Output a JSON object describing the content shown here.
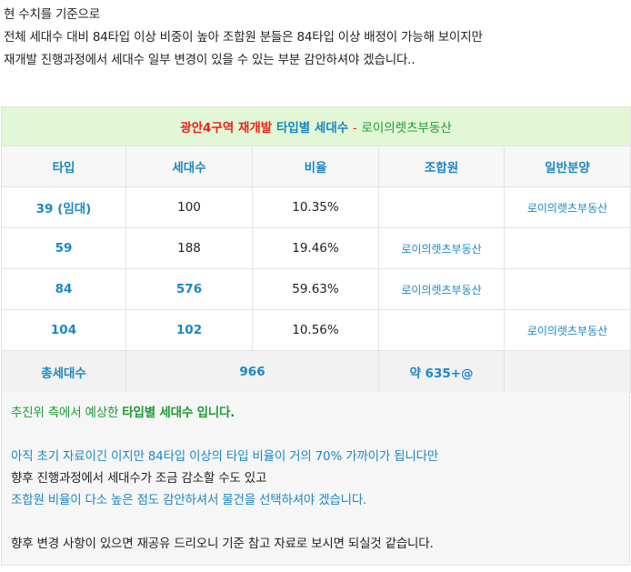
{
  "intro": {
    "line1": "현 수치를 기준으로",
    "line2": "전체 세대수 대비 84타입 이상 비중이 높아 조합원 분들은 84타입 이상 배정이 가능해 보이지만",
    "line3": "재개발 진행과정에서 세대수 일부 변경이 있을 수 있는 부분 감안하셔야 겠습니다.."
  },
  "table": {
    "title": {
      "part_area": "광안4구역 재개발",
      "part_type": "타입별 세대수",
      "separator": "-",
      "part_agent": "로이의렛츠부동산"
    },
    "headers": [
      "타입",
      "세대수",
      "비율",
      "조합원",
      "일반분양"
    ],
    "rows": [
      {
        "type": "39 (임대)",
        "units": "100",
        "ratio": "10.35%",
        "member": "",
        "general": "로이의렛츠부동산"
      },
      {
        "type": "59",
        "units": "188",
        "ratio": "19.46%",
        "member": "로이의렛츠부동산",
        "general": ""
      },
      {
        "type": "84",
        "units": "576",
        "ratio": "59.63%",
        "member": "로이의렛츠부동산",
        "general": ""
      },
      {
        "type": "104",
        "units": "102",
        "ratio": "10.56%",
        "member": "",
        "general": "로이의렛츠부동산"
      }
    ],
    "total": {
      "label": "총세대수",
      "units": "966",
      "member": "약 635+@",
      "general": ""
    }
  },
  "notes": {
    "line1_prefix": "추진위 측에서 예상한",
    "line1_bold": "타입별 세대수 입니다.",
    "line2": "아직 초기 자료이긴 이지만 84타입 이상의 타입 비율이 거의 70% 가까이가 됩니다만",
    "line3": "향후 진행과정에서 세대수가 조금 감소할 수도 있고",
    "line4": "조합원 비율이 다소 높은 점도 감안하셔서 물건을 선택하셔야 겠습니다.",
    "line5": "향후 변경 사항이 있으면 재공유 드리오니 기준 참고 자료로 보시면 되실것 같습니다."
  },
  "colors": {
    "title_red": "#e8231e",
    "accent_blue": "#1b87c4",
    "accent_green": "#1e9a33",
    "title_bg": "#e2f7d5",
    "header_bg": "#f7f7f7"
  }
}
